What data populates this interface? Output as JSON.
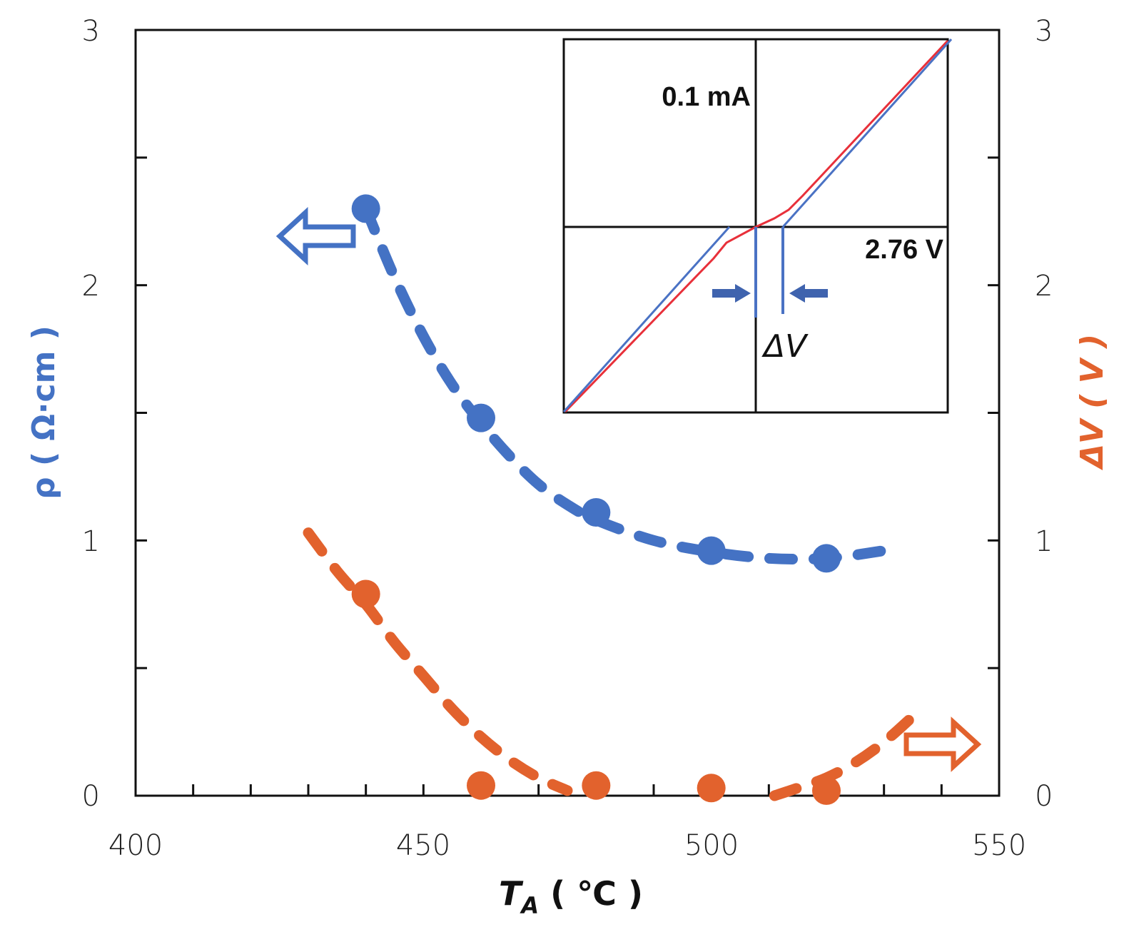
{
  "chart_data": {
    "type": "scatter",
    "title": "",
    "xlabel": "T_A ( ℃ )",
    "xlabel_main": "T",
    "xlabel_sub": "A",
    "xlabel_unit": " ( ℃ )",
    "ylabel_left": "ρ ( Ω·cm )",
    "ylabel_right": "ΔV ( V )",
    "xlim": [
      400,
      550
    ],
    "ylim_left": [
      0,
      3
    ],
    "ylim_right": [
      0,
      3
    ],
    "x_ticks": [
      "400",
      "450",
      "500",
      "550"
    ],
    "y_ticks_left": [
      "0",
      "1",
      "2",
      "3"
    ],
    "y_ticks_right": [
      "0",
      "1",
      "2",
      "3"
    ],
    "grid": false,
    "series": [
      {
        "name": "rho",
        "axis": "left",
        "color": "#4472C4",
        "x": [
          440,
          460,
          480,
          500,
          520
        ],
        "y": [
          2.3,
          1.48,
          1.11,
          0.96,
          0.93
        ],
        "trend_x": [
          440,
          445,
          450,
          455,
          460,
          465,
          470,
          475,
          480,
          490,
          500,
          510,
          520,
          530
        ],
        "trend_y": [
          2.3,
          2.03,
          1.8,
          1.61,
          1.46,
          1.33,
          1.22,
          1.14,
          1.08,
          1.0,
          0.955,
          0.93,
          0.93,
          0.96
        ]
      },
      {
        "name": "deltaV",
        "axis": "right",
        "color": "#E2622D",
        "x": [
          440,
          460,
          480,
          500,
          520
        ],
        "y": [
          0.79,
          0.04,
          0.04,
          0.03,
          0.02
        ],
        "trend_segments": [
          {
            "x": [
              430,
              435,
              440,
              445,
              450,
              455,
              460,
              465,
              470,
              475
            ],
            "y": [
              1.03,
              0.88,
              0.75,
              0.6,
              0.47,
              0.34,
              0.23,
              0.14,
              0.07,
              0.02
            ]
          },
          {
            "x": [
              511,
              515,
              520,
              525,
              530,
              535
            ],
            "y": [
              0.0,
              0.03,
              0.07,
              0.13,
              0.21,
              0.31
            ]
          }
        ]
      }
    ],
    "inset": {
      "current_label": "0.1 mA",
      "voltage_label": "2.76 V",
      "delta_label": "ΔV",
      "measured_color": "#E8303A",
      "fit_color": "#4A72C4"
    }
  }
}
